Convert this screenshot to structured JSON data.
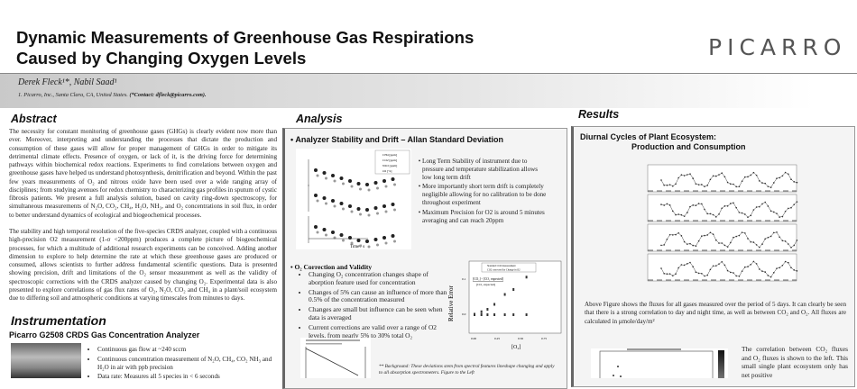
{
  "header": {
    "title_line1": "Dynamic Measurements of Greenhouse Gas Respirations",
    "title_line2": "Caused by Changing Oxygen Levels",
    "logo": "PICARRO",
    "authors": "Derek Fleck¹*, Nabil Saad¹",
    "affiliation": "1. Picarro, Inc., Santa Clara, CA, United States.",
    "contact": "(*Contact: dfleck@picarro.com)."
  },
  "abstract": {
    "heading": "Abstract",
    "p1": "The necessity for constant monitoring of greenhouse gases (GHGs) is clearly evident now more than ever. Moreover, interpreting and understanding the processes that dictate the production and consumption of these gases will allow for proper management of GHGs in order to mitigate its detrimental climate effects. Presence of oxygen, or lack of it, is the driving force for determining pathways within biochemical redox reactions. Experiments to find correlations between oxygen and greenhouse gases have helped us understand photosynthesis, denitrification and beyond. Within the past few years measurements of O₂ and nitrous oxide have been used over a wide ranging array of disciplines; from studying avenues for redox chemistry to characterizing gas profiles in sputum of cystic fibrosis patients. We present a full analysis solution, based on cavity ring-down spectroscopy, for simultaneous measurements of N₂O, CO₂, CH₄, H₂O, NH₃, and O₂ concentrations in soil flux, in order to better understand dynamics of ecological and biogeochemical processes.",
    "p2": "The stability and high temporal resolution of the five-species CRDS analyzer, coupled with a continuous high-precision O2 measurement (1-σ <200ppm) produces a complete picture of biogeochemical processes, for which a multitude of additional research experiments can be conceived. Adding another dimension to explore to help determine the rate at which these greenhouse gases are produced or consumed, allows scientists to further address fundamental scientific questions. Data is presented showing precision, drift and limitations of the O₂ sensor measurement as well as the validity of spectroscopic corrections with the CRDS analyzer caused by changing O₂. Experimental data is also presented to explore correlations of gas flux rates of O₂, N₂O, CO₂ and CH₄ in a plant/soil ecosystem due to differing soil and atmospheric conditions at varying timescales from minutes to days."
  },
  "instrumentation": {
    "heading": "Instrumentation",
    "subheading": "Picarro G2508 CRDS Gas Concentration Analyzer",
    "bullets": [
      "Continuous gas flow at ~240 sccm",
      "Continuous concentration measurement of N₂O, CH₄, CO₂ NH₃ and H₂O in air with ppb precision",
      "Data rate: Measures all 5 species in < 6 seconds"
    ]
  },
  "analysis": {
    "heading": "Analysis",
    "allan": {
      "heading": "Analyzer Stability and Drift – Allan Standard Deviation",
      "legend": [
        "CH4 [ppm]",
        "CO2 [ppm]",
        "N2O [ppm]",
        "O2 [%]"
      ],
      "xlabel": "Time / s",
      "bullets": [
        "Long Term Stability of instrument due to pressure and temperature stabilization allows low long term drift",
        "More importantly short term drift is completely negligible allowing for no calibration to be done throughout experiment",
        "Maximum Precision for O2 is around 5 minutes averaging and can reach 20ppm"
      ]
    },
    "o2": {
      "heading": "O₂ Correction and Validity",
      "bullets": [
        "Changing O₂ concentration changes shape of aborption feature used for concentration",
        "Changes of 5% can cause an influence of more than 0.5% of the concentration measured",
        "Changes are small but influence can be seen when data is averaged",
        "Current corrections are valid over a range of O2 levels, from nearly 5% to 30% total O₂"
      ],
      "plot": {
        "legend": [
          "Standard CO2 measurement",
          "CO2 corrected for Change in O2"
        ],
        "annotation_num": "[CO₂] - [CO₂ expected]",
        "annotation_den": "[CO₂ expected]",
        "ylabel": "Relative Error",
        "xlabel": "[O₂]",
        "xticks": [
          "0.00",
          "0.25",
          "0.50",
          "0.75"
        ],
        "yticks": [
          "0.1",
          "0.0"
        ]
      },
      "background": "** Background: These deviations stem from spectral features lineshape changing and apply to all absorption spectrometers. Figure to the Left"
    }
  },
  "results": {
    "heading": "Results",
    "fig_title1": "Diurnal Cycles of Plant Ecosystem:",
    "fig_title2": "Production and Consumption",
    "p1": "Above Figure shows the fluxes for all gases measured over the period of 5 days. It can clearly be seen that there is a strong correlation to day and night time, as well as between CO₂ and O₂. All fluxes are calculated in μmole/day/m²",
    "p2": "The correlation between CO₂ fluxes and O₂ fluxes is shown to the left. This small single plant ecosystem only has net positive"
  }
}
